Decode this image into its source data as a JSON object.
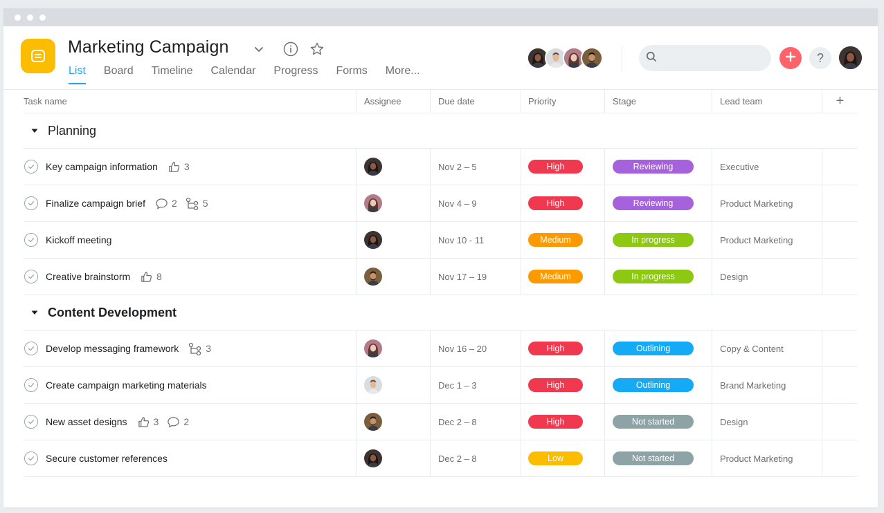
{
  "colors": {
    "accent": "#14aaf5",
    "app_icon": "#fcbd01",
    "add_button": "#fc636b",
    "high": "#f0384f",
    "medium": "#fd9a00",
    "low": "#fcbd01",
    "reviewing": "#a562dc",
    "in_progress": "#8dc913",
    "outlining": "#14aaf5",
    "not_started": "#8da3a6"
  },
  "header": {
    "title": "Marketing Campaign",
    "tabs": [
      "List",
      "Board",
      "Timeline",
      "Calendar",
      "Progress",
      "Forms",
      "More..."
    ],
    "active_tab": "List",
    "icons": [
      "chevron-down-icon",
      "info-icon",
      "star-icon",
      "search-icon",
      "plus-icon",
      "help-icon"
    ],
    "help_label": "?"
  },
  "table": {
    "columns": [
      "Task name",
      "Assignee",
      "Due date",
      "Priority",
      "Stage",
      "Lead team"
    ],
    "add_column_label": "+",
    "sections": [
      {
        "name": "Planning",
        "tasks": [
          {
            "name": "Key campaign information",
            "meta": [
              {
                "icon": "like-icon",
                "count": "3"
              }
            ],
            "assignee": "woman-dark-hair",
            "due": "Nov 2 – 5",
            "priority": "High",
            "stage": "Reviewing",
            "lead_team": "Executive"
          },
          {
            "name": "Finalize campaign brief",
            "meta": [
              {
                "icon": "comment-icon",
                "count": "2"
              },
              {
                "icon": "subtask-icon",
                "count": "5"
              }
            ],
            "assignee": "woman-light",
            "due": "Nov 4 – 9",
            "priority": "High",
            "stage": "Reviewing",
            "lead_team": "Product Marketing"
          },
          {
            "name": "Kickoff meeting",
            "meta": [],
            "assignee": "woman-dark-hair",
            "due": "Nov 10 - 11",
            "priority": "Medium",
            "stage": "In progress",
            "lead_team": "Product Marketing"
          },
          {
            "name": "Creative brainstorm",
            "meta": [
              {
                "icon": "like-icon",
                "count": "8"
              }
            ],
            "assignee": "man-beard",
            "due": "Nov 17 – 19",
            "priority": "Medium",
            "stage": "In progress",
            "lead_team": "Design"
          }
        ]
      },
      {
        "name": "Content Development",
        "tasks": [
          {
            "name": "Develop messaging framework",
            "meta": [
              {
                "icon": "subtask-icon",
                "count": "3"
              }
            ],
            "assignee": "woman-light",
            "due": "Nov 16 – 20",
            "priority": "High",
            "stage": "Outlining",
            "lead_team": "Copy & Content"
          },
          {
            "name": "Create campaign marketing materials",
            "meta": [],
            "assignee": "man-light",
            "due": "Dec 1 – 3",
            "priority": "High",
            "stage": "Outlining",
            "lead_team": "Brand Marketing"
          },
          {
            "name": "New asset designs",
            "meta": [
              {
                "icon": "like-icon",
                "count": "3"
              },
              {
                "icon": "comment-icon",
                "count": "2"
              }
            ],
            "assignee": "man-beard",
            "due": "Dec 2 – 8",
            "priority": "High",
            "stage": "Not started",
            "lead_team": "Design"
          },
          {
            "name": "Secure customer references",
            "meta": [],
            "assignee": "woman-dark-hair",
            "due": "Dec 2 – 8",
            "priority": "Low",
            "stage": "Not started",
            "lead_team": "Product Marketing"
          }
        ]
      }
    ]
  }
}
